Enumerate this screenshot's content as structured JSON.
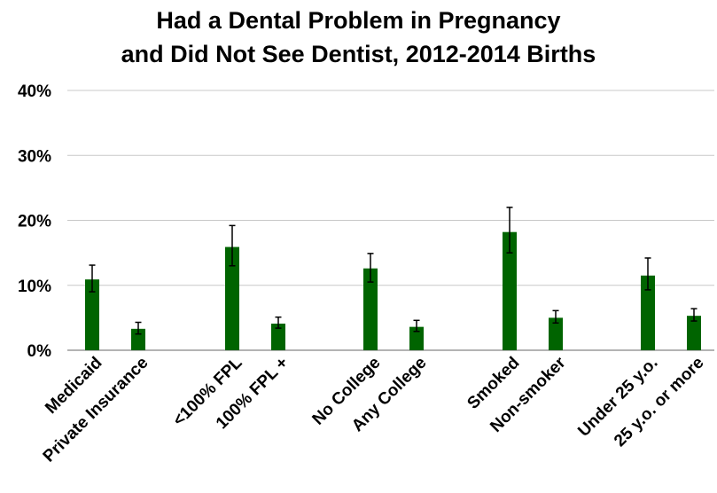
{
  "chart_data": {
    "type": "bar",
    "title_line1": "Had a Dental Problem in Pregnancy",
    "title_line2": "and Did Not See Dentist, 2012-2014 Births",
    "xlabel": "",
    "ylabel": "",
    "ylim": [
      0,
      40
    ],
    "y_ticks": [
      {
        "value": 0,
        "label": "0%"
      },
      {
        "value": 10,
        "label": "10%"
      },
      {
        "value": 20,
        "label": "20%"
      },
      {
        "value": 30,
        "label": "30%"
      },
      {
        "value": 40,
        "label": "40%"
      }
    ],
    "grid": true,
    "bar_color": "#006400",
    "groups": [
      {
        "categories": [
          "Medicaid",
          "Private Insurance"
        ]
      },
      {
        "categories": [
          "<100% FPL",
          "100% FPL +"
        ]
      },
      {
        "categories": [
          "No College",
          "Any College"
        ]
      },
      {
        "categories": [
          "Smoked",
          "Non-smoker"
        ]
      },
      {
        "categories": [
          "Under 25 y.o.",
          "25 y.o. or more"
        ]
      }
    ],
    "categories": [
      "Medicaid",
      "Private Insurance",
      "<100% FPL",
      "100% FPL +",
      "No College",
      "Any College",
      "Smoked",
      "Non-smoker",
      "Under 25 y.o.",
      "25 y.o. or more"
    ],
    "values": [
      10.9,
      3.3,
      15.9,
      4.1,
      12.6,
      3.6,
      18.2,
      5.0,
      11.5,
      5.3
    ],
    "error_low": [
      9.0,
      2.5,
      13.0,
      3.4,
      10.5,
      2.9,
      15.0,
      4.2,
      9.3,
      4.5
    ],
    "error_high": [
      13.1,
      4.3,
      19.2,
      5.1,
      14.9,
      4.6,
      22.0,
      6.1,
      14.2,
      6.4
    ]
  }
}
